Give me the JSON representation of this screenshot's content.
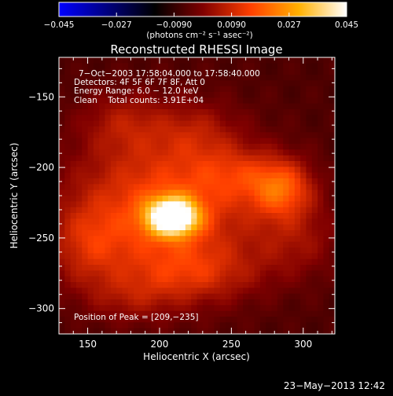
{
  "colorbar": {
    "ticks": [
      "−0.045",
      "−0.027",
      "−0.0090",
      "0.0090",
      "0.027",
      "0.045"
    ],
    "unit_label": "(photons cm⁻² s⁻¹ asec⁻²)",
    "range": [
      -0.045,
      0.045
    ],
    "colors": [
      "#0000ff",
      "#000080",
      "#000000",
      "#800000",
      "#ff4000",
      "#ffb000",
      "#ffffff"
    ]
  },
  "chart_data": {
    "type": "heatmap",
    "title": "Reconstructed RHESSI Image",
    "xlabel": "Heliocentric X (arcsec)",
    "ylabel": "Heliocentric Y (arcsec)",
    "xlim": [
      130,
      322
    ],
    "ylim": [
      -318,
      -122
    ],
    "x_ticks": [
      150,
      200,
      250,
      300
    ],
    "y_ticks": [
      -150,
      -200,
      -250,
      -300
    ],
    "x_tick_labels": [
      "150",
      "200",
      "250",
      "300"
    ],
    "y_tick_labels": [
      "−150",
      "−200",
      "−250",
      "−300"
    ],
    "background_value": -0.006,
    "sources": [
      {
        "x": 209,
        "y": -235,
        "sigma_x": 12,
        "sigma_y": 9,
        "amplitude": 0.052
      },
      {
        "x": 202,
        "y": -230,
        "sigma_x": 45,
        "sigma_y": 38,
        "amplitude": 0.022
      },
      {
        "x": 285,
        "y": -215,
        "sigma_x": 15,
        "sigma_y": 14,
        "amplitude": 0.02
      },
      {
        "x": 255,
        "y": -205,
        "sigma_x": 22,
        "sigma_y": 14,
        "amplitude": 0.01
      },
      {
        "x": 175,
        "y": -168,
        "sigma_x": 20,
        "sigma_y": 15,
        "amplitude": 0.008
      },
      {
        "x": 225,
        "y": -175,
        "sigma_x": 20,
        "sigma_y": 15,
        "amplitude": 0.007
      },
      {
        "x": 150,
        "y": -255,
        "sigma_x": 18,
        "sigma_y": 20,
        "amplitude": 0.01
      },
      {
        "x": 225,
        "y": -275,
        "sigma_x": 30,
        "sigma_y": 14,
        "amplitude": 0.01
      },
      {
        "x": 295,
        "y": -250,
        "sigma_x": 22,
        "sigma_y": 20,
        "amplitude": 0.008
      },
      {
        "x": 180,
        "y": -292,
        "sigma_x": 22,
        "sigma_y": 12,
        "amplitude": 0.006
      }
    ],
    "annotations": {
      "line1": "7−Oct−2003 17:58:04.000 to 17:58:40.000",
      "line2": "Detectors: 4F 5F 6F 7F 8F, Att 0",
      "line3": "Energy Range: 6.0 − 12.0 keV",
      "line4": "Clean    Total counts: 3.91E+04",
      "peak": "Position of Peak = [209,−235]"
    }
  },
  "timestamp": "23−May−2013 12:42"
}
